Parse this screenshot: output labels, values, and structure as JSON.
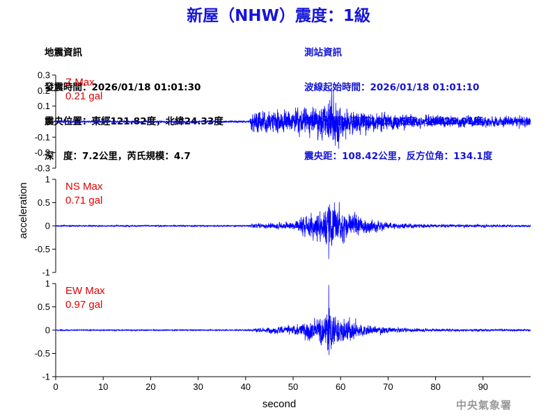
{
  "title": "新屋（NHW）震度：1級",
  "earthquake_info": {
    "heading": "地震資訊",
    "origin_time": "發震時間：2026/01/18 01:01:30",
    "epicenter": "震央位置：東經121.82度，北緯24.33度",
    "depth_magnitude": "深　度：7.2公里，芮氏規模：4.7"
  },
  "station_info": {
    "heading": "測站資訊",
    "wave_start": "波線起始時間：2026/01/18 01:01:10",
    "station_location": "測站位置：東經121.05度，北緯25.01度",
    "distance_azimuth": "震央距：108.42公里，反方位角：134.1度"
  },
  "agency": "中央氣象署",
  "colors": {
    "title": "#1515d8",
    "station_info": "#1515d8",
    "trace": "#0000ff",
    "max_label": "#e00000",
    "agency": "#9a9a9a"
  },
  "chart_data": {
    "type": "line",
    "xlabel": "second",
    "ylabel": "acceleration",
    "xlim": [
      0,
      100
    ],
    "x_ticks": [
      0,
      10,
      20,
      30,
      40,
      50,
      60,
      70,
      80,
      90
    ],
    "x_tick_labels": [
      "0",
      "10",
      "20",
      "30",
      "40",
      "50",
      "60",
      "70",
      "80",
      "90"
    ],
    "grid": false,
    "series": [
      {
        "name": "Z Max",
        "max_text": "0.21 gal",
        "ylim": [
          -0.3,
          0.3
        ],
        "y_ticks": [
          0.3,
          0.2,
          0.1,
          0,
          -0.1,
          -0.2,
          -0.3
        ],
        "y_tick_labels": [
          "0.3",
          "0.2",
          "0.1",
          "0",
          "-0.1",
          "-0.2",
          "-0.3"
        ],
        "onset": 41,
        "peak_time": 58.5,
        "peak": 0.21,
        "noise": 0.004,
        "envelope": [
          [
            0,
            0.005
          ],
          [
            40.8,
            0.005
          ],
          [
            41.2,
            0.09
          ],
          [
            50,
            0.09
          ],
          [
            55,
            0.12
          ],
          [
            58.5,
            0.18
          ],
          [
            62,
            0.1
          ],
          [
            70,
            0.06
          ],
          [
            80,
            0.045
          ],
          [
            100,
            0.04
          ]
        ]
      },
      {
        "name": "NS Max",
        "max_text": "0.71 gal",
        "ylim": [
          -1,
          1
        ],
        "y_ticks": [
          1,
          0.5,
          0,
          -0.5,
          -1
        ],
        "y_tick_labels": [
          "1",
          "0.5",
          "0",
          "-0.5",
          "-1"
        ],
        "onset": 41,
        "peak_time": 57.5,
        "peak": -0.71,
        "noise": 0.008,
        "envelope": [
          [
            0,
            0.01
          ],
          [
            40,
            0.012
          ],
          [
            42,
            0.06
          ],
          [
            50,
            0.1
          ],
          [
            55,
            0.4
          ],
          [
            57.5,
            0.6
          ],
          [
            62,
            0.3
          ],
          [
            70,
            0.08
          ],
          [
            80,
            0.04
          ],
          [
            100,
            0.025
          ]
        ]
      },
      {
        "name": "EW Max",
        "max_text": "0.97 gal",
        "ylim": [
          -1,
          1
        ],
        "y_ticks": [
          1,
          0.5,
          0,
          -0.5,
          -1
        ],
        "y_tick_labels": [
          "1",
          "0.5",
          "0",
          "-0.5",
          "-1"
        ],
        "onset": 41,
        "peak_time": 57.5,
        "peak": 0.97,
        "noise": 0.006,
        "envelope": [
          [
            0,
            0.008
          ],
          [
            40,
            0.01
          ],
          [
            42,
            0.05
          ],
          [
            50,
            0.12
          ],
          [
            55,
            0.3
          ],
          [
            57.5,
            0.55
          ],
          [
            60,
            0.35
          ],
          [
            65,
            0.15
          ],
          [
            70,
            0.07
          ],
          [
            80,
            0.035
          ],
          [
            100,
            0.02
          ]
        ]
      }
    ]
  }
}
